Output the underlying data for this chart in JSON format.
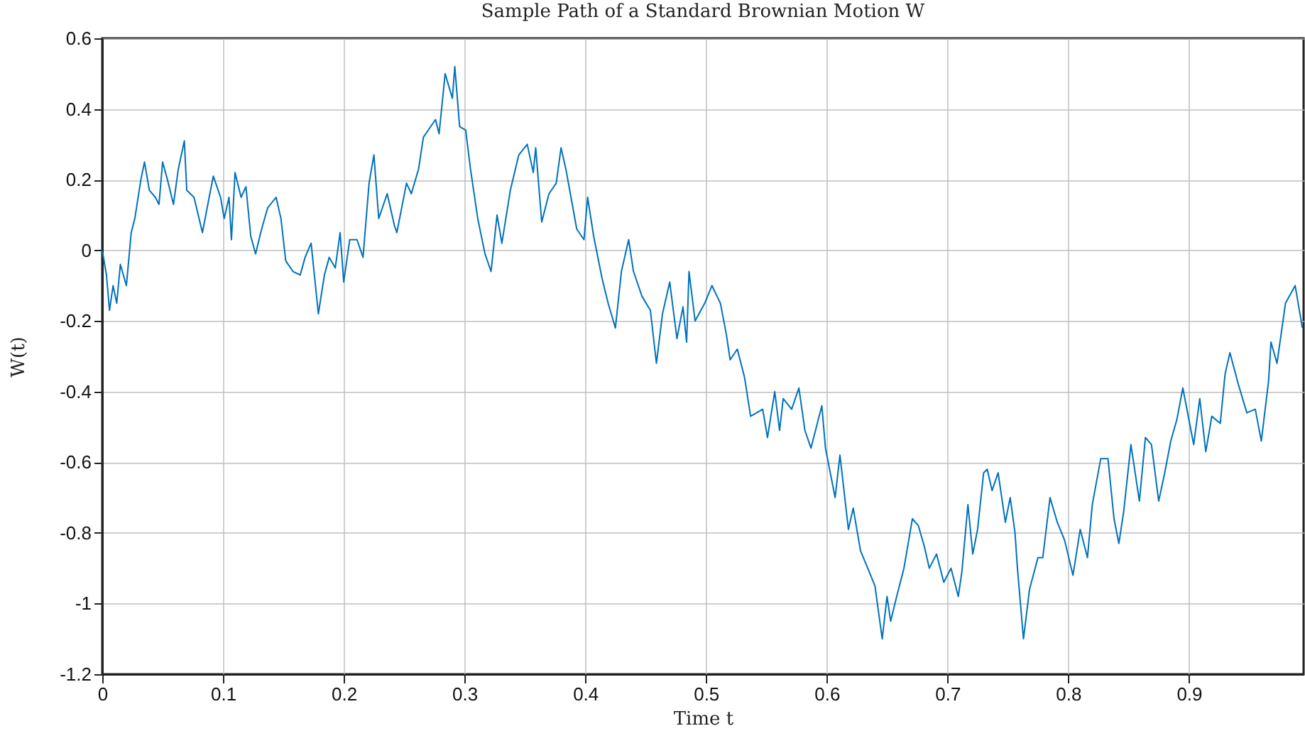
{
  "chart_data": {
    "type": "line",
    "title": "Sample Path of a Standard Brownian Motion W",
    "xlabel": "Time t",
    "ylabel": "W(t)",
    "xlim": [
      0,
      0.995
    ],
    "xticks": [
      0,
      0.1,
      0.2,
      0.3,
      0.4,
      0.5,
      0.6,
      0.7,
      0.8,
      0.9
    ],
    "ylim": [
      -1.2,
      0.6
    ],
    "yticks": [
      -1.2,
      -1,
      -0.8,
      -0.6,
      -0.4,
      -0.2,
      0,
      0.2,
      0.4,
      0.6
    ],
    "grid": true,
    "marker": "none",
    "line_style": "solid",
    "series": [
      {
        "color": "#0072bd",
        "x": [
          0,
          0.0035,
          0.006,
          0.009,
          0.012,
          0.015,
          0.02,
          0.024,
          0.027,
          0.032,
          0.035,
          0.039,
          0.044,
          0.047,
          0.05,
          0.054,
          0.059,
          0.063,
          0.068,
          0.07,
          0.076,
          0.083,
          0.088,
          0.092,
          0.098,
          0.101,
          0.105,
          0.107,
          0.11,
          0.115,
          0.119,
          0.123,
          0.127,
          0.132,
          0.137,
          0.144,
          0.148,
          0.152,
          0.158,
          0.164,
          0.168,
          0.173,
          0.179,
          0.184,
          0.188,
          0.193,
          0.197,
          0.2,
          0.205,
          0.211,
          0.216,
          0.221,
          0.225,
          0.229,
          0.236,
          0.242,
          0.244,
          0.252,
          0.256,
          0.262,
          0.266,
          0.276,
          0.279,
          0.284,
          0.29,
          0.292,
          0.296,
          0.301,
          0.305,
          0.311,
          0.317,
          0.322,
          0.327,
          0.331,
          0.338,
          0.345,
          0.352,
          0.357,
          0.359,
          0.364,
          0.37,
          0.376,
          0.38,
          0.384,
          0.393,
          0.399,
          0.402,
          0.407,
          0.414,
          0.419,
          0.425,
          0.43,
          0.436,
          0.44,
          0.447,
          0.454,
          0.459,
          0.464,
          0.47,
          0.476,
          0.481,
          0.484,
          0.486,
          0.491,
          0.499,
          0.505,
          0.512,
          0.517,
          0.52,
          0.526,
          0.532,
          0.537,
          0.542,
          0.547,
          0.551,
          0.557,
          0.561,
          0.564,
          0.571,
          0.577,
          0.582,
          0.587,
          0.593,
          0.596,
          0.599,
          0.607,
          0.611,
          0.618,
          0.622,
          0.628,
          0.634,
          0.64,
          0.646,
          0.65,
          0.653,
          0.658,
          0.664,
          0.671,
          0.676,
          0.681,
          0.685,
          0.691,
          0.697,
          0.703,
          0.709,
          0.712,
          0.717,
          0.721,
          0.725,
          0.73,
          0.733,
          0.737,
          0.742,
          0.748,
          0.752,
          0.756,
          0.758,
          0.763,
          0.768,
          0.775,
          0.779,
          0.785,
          0.791,
          0.797,
          0.804,
          0.81,
          0.816,
          0.82,
          0.827,
          0.833,
          0.838,
          0.842,
          0.846,
          0.852,
          0.859,
          0.864,
          0.869,
          0.875,
          0.88,
          0.885,
          0.89,
          0.895,
          0.904,
          0.909,
          0.914,
          0.919,
          0.926,
          0.93,
          0.934,
          0.941,
          0.948,
          0.955,
          0.96,
          0.966,
          0.968,
          0.973,
          0.98,
          0.988,
          0.994
        ],
        "values": [
          0,
          -0.07,
          -0.17,
          -0.1,
          -0.15,
          -0.04,
          -0.1,
          0.05,
          0.09,
          0.2,
          0.25,
          0.17,
          0.15,
          0.13,
          0.25,
          0.2,
          0.13,
          0.23,
          0.31,
          0.17,
          0.15,
          0.05,
          0.14,
          0.21,
          0.15,
          0.09,
          0.15,
          0.03,
          0.22,
          0.15,
          0.18,
          0.04,
          -0.01,
          0.06,
          0.12,
          0.15,
          0.09,
          -0.03,
          -0.06,
          -0.07,
          -0.02,
          0.02,
          -0.18,
          -0.07,
          -0.02,
          -0.05,
          0.05,
          -0.09,
          0.03,
          0.03,
          -0.02,
          0.19,
          0.27,
          0.09,
          0.16,
          0.07,
          0.05,
          0.19,
          0.16,
          0.23,
          0.32,
          0.37,
          0.33,
          0.5,
          0.43,
          0.52,
          0.35,
          0.34,
          0.23,
          0.09,
          -0.01,
          -0.06,
          0.1,
          0.02,
          0.17,
          0.27,
          0.3,
          0.22,
          0.29,
          0.08,
          0.16,
          0.19,
          0.29,
          0.23,
          0.06,
          0.03,
          0.15,
          0.04,
          -0.08,
          -0.15,
          -0.22,
          -0.06,
          0.03,
          -0.06,
          -0.13,
          -0.17,
          -0.32,
          -0.18,
          -0.09,
          -0.25,
          -0.16,
          -0.26,
          -0.06,
          -0.2,
          -0.15,
          -0.1,
          -0.15,
          -0.24,
          -0.31,
          -0.28,
          -0.36,
          -0.47,
          -0.46,
          -0.45,
          -0.53,
          -0.4,
          -0.51,
          -0.42,
          -0.45,
          -0.39,
          -0.51,
          -0.56,
          -0.48,
          -0.44,
          -0.56,
          -0.7,
          -0.58,
          -0.79,
          -0.73,
          -0.85,
          -0.9,
          -0.95,
          -1.1,
          -0.98,
          -1.05,
          -0.98,
          -0.9,
          -0.76,
          -0.78,
          -0.84,
          -0.9,
          -0.86,
          -0.94,
          -0.9,
          -0.98,
          -0.91,
          -0.72,
          -0.86,
          -0.79,
          -0.63,
          -0.62,
          -0.68,
          -0.63,
          -0.77,
          -0.7,
          -0.8,
          -0.9,
          -1.1,
          -0.96,
          -0.87,
          -0.87,
          -0.7,
          -0.77,
          -0.82,
          -0.92,
          -0.79,
          -0.87,
          -0.72,
          -0.59,
          -0.59,
          -0.76,
          -0.83,
          -0.74,
          -0.55,
          -0.71,
          -0.53,
          -0.55,
          -0.71,
          -0.63,
          -0.54,
          -0.48,
          -0.39,
          -0.55,
          -0.42,
          -0.57,
          -0.47,
          -0.49,
          -0.35,
          -0.29,
          -0.38,
          -0.46,
          -0.45,
          -0.54,
          -0.37,
          -0.26,
          -0.32,
          -0.15,
          -0.1,
          -0.22
        ]
      }
    ]
  }
}
